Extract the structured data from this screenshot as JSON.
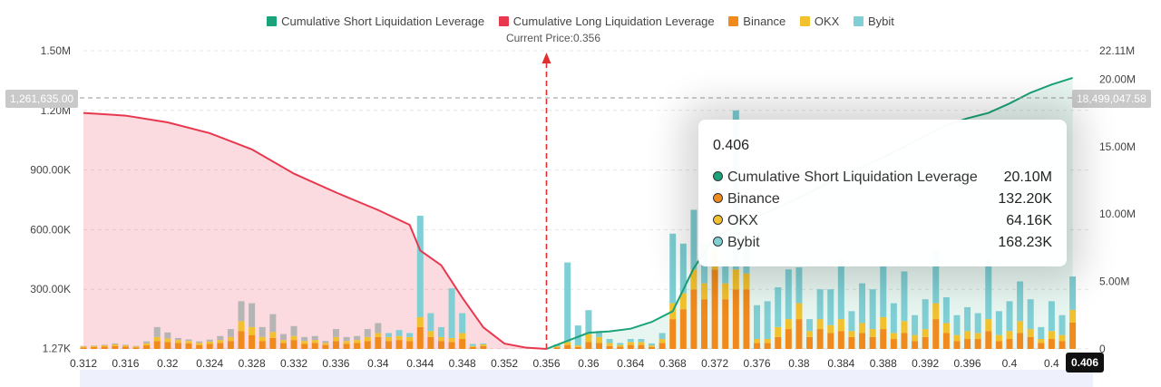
{
  "legend": [
    {
      "label": "Cumulative Short Liquidation Leverage",
      "color": "#1aa37a"
    },
    {
      "label": "Cumulative Long Liquidation Leverage",
      "color": "#e8384f"
    },
    {
      "label": "Binance",
      "color": "#f08a1c"
    },
    {
      "label": "OKX",
      "color": "#f2c12e"
    },
    {
      "label": "Bybit",
      "color": "#7fcfd4"
    }
  ],
  "current_price_label": "Current Price:0.356",
  "tooltip": {
    "title": "0.406",
    "rows": [
      {
        "label": "Cumulative Short Liquidation Leverage",
        "value": "20.10M",
        "color": "#1aa37a"
      },
      {
        "label": "Binance",
        "value": "132.20K",
        "color": "#f08a1c"
      },
      {
        "label": "OKX",
        "value": "64.16K",
        "color": "#f2c12e"
      },
      {
        "label": "Bybit",
        "value": "168.23K",
        "color": "#7fcfd4"
      }
    ]
  },
  "crosshair": {
    "left_value_label": "1,261,635.00",
    "right_value_label": "18,499,047.58",
    "x_label": "0.406"
  },
  "chart_data": {
    "type": "bar",
    "current_price": 0.356,
    "x_ticks": [
      "0.312",
      "0.316",
      "0.32",
      "0.324",
      "0.328",
      "0.332",
      "0.336",
      "0.34",
      "0.344",
      "0.348",
      "0.352",
      "0.356",
      "0.36",
      "0.364",
      "0.368",
      "0.372",
      "0.376",
      "0.38",
      "0.384",
      "0.388",
      "0.392",
      "0.396",
      "0.4",
      "0.4"
    ],
    "left_axis": {
      "ticks": [
        "1.27K",
        "300.00K",
        "600.00K",
        "900.00K",
        "1.20M",
        "1.50M"
      ],
      "values": [
        1270,
        300000,
        600000,
        900000,
        1200000,
        1500000
      ]
    },
    "right_axis": {
      "ticks": [
        "0",
        "5.00M",
        "10.00M",
        "15.00M",
        "20.00M",
        "22.11M"
      ],
      "values": [
        0,
        5000000,
        10000000,
        15000000,
        20000000,
        22110000
      ]
    },
    "x_range": [
      0.312,
      0.4075
    ],
    "bars": {
      "x": [
        0.312,
        0.313,
        0.314,
        0.315,
        0.316,
        0.317,
        0.318,
        0.319,
        0.32,
        0.321,
        0.322,
        0.323,
        0.324,
        0.325,
        0.326,
        0.327,
        0.328,
        0.329,
        0.33,
        0.331,
        0.332,
        0.333,
        0.334,
        0.335,
        0.336,
        0.337,
        0.338,
        0.339,
        0.34,
        0.341,
        0.342,
        0.343,
        0.344,
        0.345,
        0.346,
        0.347,
        0.348,
        0.349,
        0.35,
        0.357,
        0.358,
        0.359,
        0.36,
        0.361,
        0.362,
        0.363,
        0.364,
        0.365,
        0.366,
        0.367,
        0.368,
        0.369,
        0.37,
        0.371,
        0.372,
        0.373,
        0.374,
        0.375,
        0.376,
        0.377,
        0.378,
        0.379,
        0.38,
        0.381,
        0.382,
        0.383,
        0.384,
        0.385,
        0.386,
        0.387,
        0.388,
        0.389,
        0.39,
        0.391,
        0.392,
        0.393,
        0.394,
        0.395,
        0.396,
        0.397,
        0.398,
        0.399,
        0.4,
        0.401,
        0.402,
        0.403,
        0.404,
        0.405,
        0.406
      ],
      "series": [
        {
          "name": "Binance",
          "values": [
            8000,
            10000,
            12000,
            15000,
            12000,
            8000,
            18000,
            40000,
            35000,
            30000,
            28000,
            20000,
            25000,
            30000,
            40000,
            90000,
            70000,
            40000,
            55000,
            30000,
            45000,
            25000,
            30000,
            20000,
            40000,
            25000,
            30000,
            40000,
            60000,
            40000,
            45000,
            40000,
            110000,
            60000,
            40000,
            35000,
            50000,
            10000,
            15000,
            8000,
            20000,
            10000,
            35000,
            30000,
            15000,
            12000,
            20000,
            20000,
            10000,
            30000,
            150000,
            200000,
            300000,
            250000,
            400000,
            250000,
            300000,
            300000,
            30000,
            30000,
            60000,
            100000,
            150000,
            60000,
            100000,
            80000,
            90000,
            60000,
            80000,
            60000,
            100000,
            50000,
            80000,
            40000,
            60000,
            150000,
            80000,
            40000,
            50000,
            50000,
            90000,
            40000,
            50000,
            80000,
            60000,
            30000,
            50000,
            40000,
            132200
          ]
        },
        {
          "name": "OKX",
          "values": [
            5000,
            5000,
            6000,
            8000,
            6000,
            5000,
            10000,
            20000,
            18000,
            15000,
            12000,
            10000,
            12000,
            15000,
            20000,
            50000,
            40000,
            20000,
            30000,
            15000,
            20000,
            15000,
            15000,
            10000,
            20000,
            15000,
            15000,
            20000,
            20000,
            20000,
            20000,
            20000,
            50000,
            30000,
            20000,
            20000,
            30000,
            5000,
            8000,
            5000,
            15000,
            8000,
            40000,
            30000,
            15000,
            8000,
            15000,
            15000,
            8000,
            20000,
            80000,
            80000,
            100000,
            80000,
            100000,
            80000,
            100000,
            80000,
            20000,
            20000,
            50000,
            50000,
            80000,
            30000,
            50000,
            40000,
            60000,
            30000,
            50000,
            40000,
            60000,
            30000,
            60000,
            30000,
            40000,
            80000,
            50000,
            30000,
            40000,
            30000,
            60000,
            30000,
            40000,
            60000,
            40000,
            20000,
            40000,
            30000,
            64160
          ]
        },
        {
          "name": "Bybit",
          "values": [
            2000,
            2000,
            3000,
            5000,
            3000,
            2000,
            10000,
            50000,
            30000,
            10000,
            8000,
            8000,
            10000,
            20000,
            40000,
            100000,
            120000,
            50000,
            90000,
            30000,
            50000,
            20000,
            20000,
            10000,
            40000,
            20000,
            20000,
            40000,
            50000,
            20000,
            30000,
            20000,
            510000,
            90000,
            50000,
            250000,
            100000,
            10000,
            5000,
            10000,
            400000,
            100000,
            120000,
            30000,
            20000,
            10000,
            15000,
            15000,
            10000,
            30000,
            350000,
            250000,
            300000,
            200000,
            350000,
            100000,
            800000,
            200000,
            170000,
            190000,
            200000,
            250000,
            180000,
            60000,
            150000,
            180000,
            300000,
            100000,
            200000,
            200000,
            260000,
            150000,
            250000,
            100000,
            150000,
            270000,
            130000,
            100000,
            120000,
            100000,
            300000,
            120000,
            150000,
            200000,
            150000,
            60000,
            150000,
            100000,
            168230
          ]
        }
      ]
    },
    "long_cumulative": {
      "x": [
        0.312,
        0.316,
        0.32,
        0.324,
        0.328,
        0.332,
        0.336,
        0.34,
        0.343,
        0.344,
        0.346,
        0.348,
        0.35,
        0.352,
        0.354,
        0.356
      ],
      "y": [
        17500000,
        17300000,
        16800000,
        16000000,
        14800000,
        13000000,
        11600000,
        10300000,
        9200000,
        7300000,
        6200000,
        3800000,
        1600000,
        400000,
        100000,
        0
      ]
    },
    "short_cumulative": {
      "x": [
        0.356,
        0.358,
        0.36,
        0.362,
        0.364,
        0.366,
        0.368,
        0.37,
        0.372,
        0.374,
        0.376,
        0.378,
        0.38,
        0.382,
        0.384,
        0.386,
        0.388,
        0.39,
        0.392,
        0.394,
        0.396,
        0.398,
        0.4,
        0.402,
        0.404,
        0.406
      ],
      "y": [
        0,
        600000,
        1200000,
        1300000,
        1500000,
        2000000,
        2800000,
        6000000,
        8300000,
        9100000,
        9800000,
        10500000,
        11200000,
        12000000,
        12800000,
        13500000,
        14200000,
        15000000,
        15800000,
        16600000,
        17100000,
        17500000,
        18200000,
        19000000,
        19600000,
        20100000
      ]
    }
  }
}
